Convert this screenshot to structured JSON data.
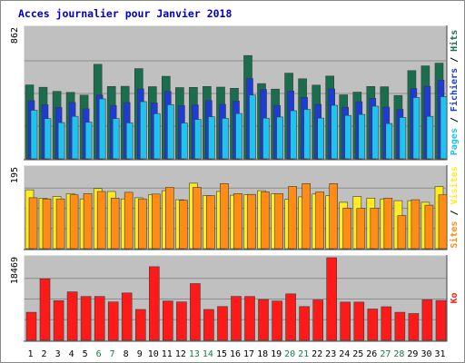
{
  "chart_data": {
    "type": "bar",
    "title": "Acces journalier pour Janvier 2018",
    "categories": [
      "1",
      "2",
      "3",
      "4",
      "5",
      "6",
      "7",
      "8",
      "9",
      "10",
      "11",
      "12",
      "13",
      "14",
      "15",
      "16",
      "17",
      "18",
      "19",
      "20",
      "21",
      "22",
      "23",
      "24",
      "25",
      "26",
      "27",
      "28",
      "29",
      "30",
      "31"
    ],
    "weekend_days": [
      "6",
      "7",
      "13",
      "14",
      "20",
      "21",
      "27",
      "28"
    ],
    "panels": [
      {
        "id": "pages-fichiers-hits",
        "ymax_label": "862",
        "ylim": [
          0,
          862
        ],
        "legend_sep": " / ",
        "series": [
          {
            "name": "Hits",
            "color": "#1a6e4e",
            "values": [
              487,
              472,
              445,
              438,
              420,
              623,
              477,
              478,
              595,
              476,
              544,
              470,
              471,
              477,
              473,
              465,
              681,
              496,
              460,
              565,
              528,
              486,
              546,
              422,
              440,
              477,
              475,
              418,
              582,
              613,
              631
            ]
          },
          {
            "name": "Fichiers",
            "color": "#1f3bd6",
            "values": [
              384,
              357,
              339,
              372,
              330,
              421,
              352,
              372,
              461,
              369,
              444,
              351,
              355,
              385,
              359,
              381,
              530,
              458,
              352,
              447,
              405,
              359,
              461,
              340,
              377,
              399,
              341,
              326,
              464,
              478,
              519
            ]
          },
          {
            "name": "Pages",
            "color": "#1ec3ef",
            "values": [
              320,
              265,
              239,
              280,
              242,
              395,
              265,
              237,
              377,
              298,
              357,
              236,
              260,
              278,
              267,
              299,
              420,
              268,
              276,
              317,
              326,
              269,
              353,
              286,
              293,
              347,
              233,
              273,
              404,
              280,
              410
            ]
          }
        ]
      },
      {
        "id": "sites-visites",
        "ymax_label": "195",
        "ylim": [
          0,
          195
        ],
        "legend_sep": " / ",
        "series": [
          {
            "name": "Visites",
            "color": "#ffec1e",
            "values": [
              142,
              122,
              126,
              133,
              120,
              145,
              138,
              120,
              123,
              130,
              140,
              118,
              158,
              128,
              138,
              129,
              130,
              140,
              133,
              119,
              125,
              132,
              128,
              112,
              126,
              122,
              120,
              116,
              116,
              112,
              150
            ]
          },
          {
            "name": "Sites",
            "color": "#ff8c14",
            "values": [
              123,
              120,
              120,
              130,
              133,
              138,
              122,
              136,
              120,
              132,
              148,
              117,
              148,
              128,
              157,
              133,
              131,
              137,
              133,
              150,
              157,
              137,
              157,
              98,
              97,
              98,
              122,
              80,
              118,
              105,
              130
            ]
          }
        ]
      },
      {
        "id": "ko",
        "ymax_label": "18469",
        "ylim": [
          0,
          18469
        ],
        "series": [
          {
            "name": "Ko",
            "color": "#ff1a1a",
            "values": [
              6280,
              13755,
              8876,
              10840,
              9800,
              9800,
              8580,
              10600,
              6900,
              16450,
              8780,
              8580,
              12680,
              6900,
              7560,
              9820,
              9800,
              9140,
              8780,
              10400,
              7550,
              9040,
              18469,
              8550,
              8550,
              7010,
              7510,
              6280,
              5980,
              9060,
              8900
            ]
          }
        ]
      }
    ]
  }
}
